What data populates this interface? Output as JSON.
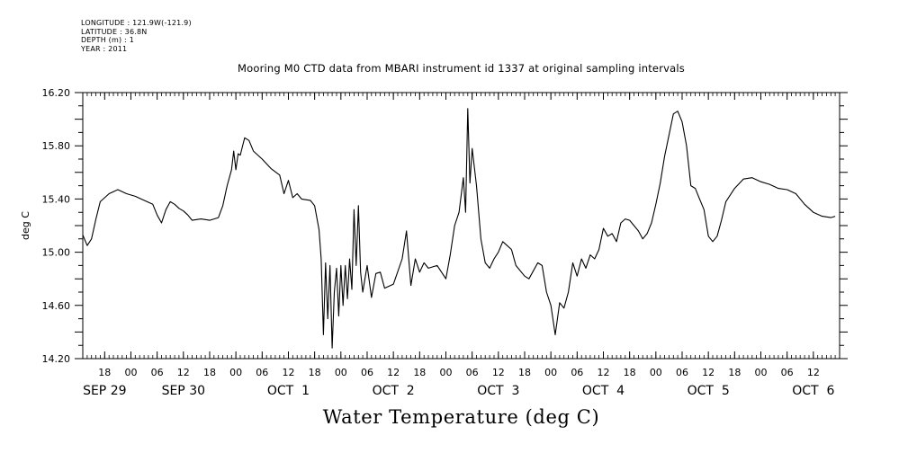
{
  "header": {
    "longitude": "LONGITUDE : 121.9W(-121.9)",
    "latitude": "LATITUDE : 36.8N",
    "depth": "DEPTH (m) : 1",
    "year": "YEAR : 2011"
  },
  "chart_data": {
    "type": "line",
    "title": "Mooring M0 CTD data from MBARI instrument id 1337 at original sampling intervals",
    "xlabel": "Water Temperature (deg C)",
    "ylabel": "deg C",
    "ylim": [
      14.2,
      16.2
    ],
    "xlim": [
      "2011-09-29T13:00",
      "2011-10-06T18:00"
    ],
    "y_ticks": [
      "14.20",
      "14.60",
      "15.00",
      "15.40",
      "15.80",
      "16.20"
    ],
    "hour_ticks": [
      {
        "t": "2011-09-29T18:00",
        "label": "18"
      },
      {
        "t": "2011-09-30T00:00",
        "label": "00"
      },
      {
        "t": "2011-09-30T06:00",
        "label": "06"
      },
      {
        "t": "2011-09-30T12:00",
        "label": "12"
      },
      {
        "t": "2011-09-30T18:00",
        "label": "18"
      },
      {
        "t": "2011-10-01T00:00",
        "label": "00"
      },
      {
        "t": "2011-10-01T06:00",
        "label": "06"
      },
      {
        "t": "2011-10-01T12:00",
        "label": "12"
      },
      {
        "t": "2011-10-01T18:00",
        "label": "18"
      },
      {
        "t": "2011-10-02T00:00",
        "label": "00"
      },
      {
        "t": "2011-10-02T06:00",
        "label": "06"
      },
      {
        "t": "2011-10-02T12:00",
        "label": "12"
      },
      {
        "t": "2011-10-02T18:00",
        "label": "18"
      },
      {
        "t": "2011-10-03T00:00",
        "label": "00"
      },
      {
        "t": "2011-10-03T06:00",
        "label": "06"
      },
      {
        "t": "2011-10-03T12:00",
        "label": "12"
      },
      {
        "t": "2011-10-03T18:00",
        "label": "18"
      },
      {
        "t": "2011-10-04T00:00",
        "label": "00"
      },
      {
        "t": "2011-10-04T06:00",
        "label": "06"
      },
      {
        "t": "2011-10-04T12:00",
        "label": "12"
      },
      {
        "t": "2011-10-04T18:00",
        "label": "18"
      },
      {
        "t": "2011-10-05T00:00",
        "label": "00"
      },
      {
        "t": "2011-10-05T06:00",
        "label": "06"
      },
      {
        "t": "2011-10-05T12:00",
        "label": "12"
      },
      {
        "t": "2011-10-05T18:00",
        "label": "18"
      },
      {
        "t": "2011-10-06T00:00",
        "label": "00"
      },
      {
        "t": "2011-10-06T06:00",
        "label": "06"
      },
      {
        "t": "2011-10-06T12:00",
        "label": "12"
      }
    ],
    "day_labels": [
      {
        "t": "2011-09-29T18:00",
        "label": "SEP 29"
      },
      {
        "t": "2011-09-30T12:00",
        "label": "SEP 30"
      },
      {
        "t": "2011-10-01T12:00",
        "label": "OCT  1"
      },
      {
        "t": "2011-10-02T12:00",
        "label": "OCT  2"
      },
      {
        "t": "2011-10-03T12:00",
        "label": "OCT  3"
      },
      {
        "t": "2011-10-04T12:00",
        "label": "OCT  4"
      },
      {
        "t": "2011-10-05T12:00",
        "label": "OCT  5"
      },
      {
        "t": "2011-10-06T12:00",
        "label": "OCT  6"
      }
    ],
    "series": [
      {
        "points": [
          [
            "2011-09-29T13:00",
            15.13
          ],
          [
            "2011-09-29T14:00",
            15.05
          ],
          [
            "2011-09-29T15:00",
            15.1
          ],
          [
            "2011-09-29T16:00",
            15.25
          ],
          [
            "2011-09-29T17:00",
            15.38
          ],
          [
            "2011-09-29T19:00",
            15.44
          ],
          [
            "2011-09-29T21:00",
            15.47
          ],
          [
            "2011-09-29T23:00",
            15.44
          ],
          [
            "2011-09-30T01:00",
            15.42
          ],
          [
            "2011-09-30T03:00",
            15.39
          ],
          [
            "2011-09-30T05:00",
            15.36
          ],
          [
            "2011-09-30T06:00",
            15.28
          ],
          [
            "2011-09-30T07:00",
            15.22
          ],
          [
            "2011-09-30T08:00",
            15.32
          ],
          [
            "2011-09-30T09:00",
            15.38
          ],
          [
            "2011-09-30T10:00",
            15.36
          ],
          [
            "2011-09-30T11:00",
            15.33
          ],
          [
            "2011-09-30T12:00",
            15.31
          ],
          [
            "2011-09-30T13:00",
            15.28
          ],
          [
            "2011-09-30T14:00",
            15.24
          ],
          [
            "2011-09-30T16:00",
            15.25
          ],
          [
            "2011-09-30T18:00",
            15.24
          ],
          [
            "2011-09-30T20:00",
            15.26
          ],
          [
            "2011-09-30T21:00",
            15.35
          ],
          [
            "2011-09-30T22:00",
            15.5
          ],
          [
            "2011-09-30T23:00",
            15.62
          ],
          [
            "2011-09-30T23:30",
            15.76
          ],
          [
            "2011-10-01T00:00",
            15.62
          ],
          [
            "2011-10-01T00:30",
            15.74
          ],
          [
            "2011-10-01T01:00",
            15.73
          ],
          [
            "2011-10-01T02:00",
            15.86
          ],
          [
            "2011-10-01T03:00",
            15.84
          ],
          [
            "2011-10-01T04:00",
            15.76
          ],
          [
            "2011-10-01T06:00",
            15.7
          ],
          [
            "2011-10-01T08:00",
            15.63
          ],
          [
            "2011-10-01T10:00",
            15.58
          ],
          [
            "2011-10-01T11:00",
            15.44
          ],
          [
            "2011-10-01T12:00",
            15.54
          ],
          [
            "2011-10-01T13:00",
            15.41
          ],
          [
            "2011-10-01T14:00",
            15.44
          ],
          [
            "2011-10-01T15:00",
            15.4
          ],
          [
            "2011-10-01T17:00",
            15.39
          ],
          [
            "2011-10-01T18:00",
            15.35
          ],
          [
            "2011-10-01T19:00",
            15.17
          ],
          [
            "2011-10-01T19:30",
            14.95
          ],
          [
            "2011-10-01T20:00",
            14.38
          ],
          [
            "2011-10-01T20:30",
            14.92
          ],
          [
            "2011-10-01T21:00",
            14.5
          ],
          [
            "2011-10-01T21:30",
            14.9
          ],
          [
            "2011-10-01T22:00",
            14.28
          ],
          [
            "2011-10-01T22:30",
            14.7
          ],
          [
            "2011-10-01T23:00",
            14.88
          ],
          [
            "2011-10-01T23:30",
            14.52
          ],
          [
            "2011-10-02T00:00",
            14.9
          ],
          [
            "2011-10-02T00:30",
            14.6
          ],
          [
            "2011-10-02T01:00",
            14.9
          ],
          [
            "2011-10-02T01:30",
            14.65
          ],
          [
            "2011-10-02T02:00",
            14.95
          ],
          [
            "2011-10-02T02:30",
            14.72
          ],
          [
            "2011-10-02T03:00",
            15.32
          ],
          [
            "2011-10-02T03:30",
            14.9
          ],
          [
            "2011-10-02T04:00",
            15.35
          ],
          [
            "2011-10-02T04:30",
            14.85
          ],
          [
            "2011-10-02T05:00",
            14.7
          ],
          [
            "2011-10-02T06:00",
            14.9
          ],
          [
            "2011-10-02T07:00",
            14.66
          ],
          [
            "2011-10-02T08:00",
            14.84
          ],
          [
            "2011-10-02T09:00",
            14.85
          ],
          [
            "2011-10-02T10:00",
            14.73
          ],
          [
            "2011-10-02T12:00",
            14.76
          ],
          [
            "2011-10-02T14:00",
            14.95
          ],
          [
            "2011-10-02T15:00",
            15.16
          ],
          [
            "2011-10-02T16:00",
            14.75
          ],
          [
            "2011-10-02T17:00",
            14.95
          ],
          [
            "2011-10-02T18:00",
            14.85
          ],
          [
            "2011-10-02T19:00",
            14.92
          ],
          [
            "2011-10-02T20:00",
            14.88
          ],
          [
            "2011-10-02T22:00",
            14.9
          ],
          [
            "2011-10-03T00:00",
            14.8
          ],
          [
            "2011-10-03T01:00",
            14.98
          ],
          [
            "2011-10-03T02:00",
            15.2
          ],
          [
            "2011-10-03T03:00",
            15.3
          ],
          [
            "2011-10-03T04:00",
            15.56
          ],
          [
            "2011-10-03T04:30",
            15.3
          ],
          [
            "2011-10-03T05:00",
            16.08
          ],
          [
            "2011-10-03T05:30",
            15.52
          ],
          [
            "2011-10-03T06:00",
            15.78
          ],
          [
            "2011-10-03T07:00",
            15.5
          ],
          [
            "2011-10-03T08:00",
            15.1
          ],
          [
            "2011-10-03T09:00",
            14.92
          ],
          [
            "2011-10-03T10:00",
            14.88
          ],
          [
            "2011-10-03T11:00",
            14.95
          ],
          [
            "2011-10-03T12:00",
            15.0
          ],
          [
            "2011-10-03T13:00",
            15.08
          ],
          [
            "2011-10-03T14:00",
            15.05
          ],
          [
            "2011-10-03T15:00",
            15.02
          ],
          [
            "2011-10-03T16:00",
            14.9
          ],
          [
            "2011-10-03T18:00",
            14.82
          ],
          [
            "2011-10-03T19:00",
            14.8
          ],
          [
            "2011-10-03T21:00",
            14.92
          ],
          [
            "2011-10-03T22:00",
            14.9
          ],
          [
            "2011-10-03T23:00",
            14.7
          ],
          [
            "2011-10-04T00:00",
            14.6
          ],
          [
            "2011-10-04T01:00",
            14.38
          ],
          [
            "2011-10-04T02:00",
            14.62
          ],
          [
            "2011-10-04T03:00",
            14.58
          ],
          [
            "2011-10-04T04:00",
            14.7
          ],
          [
            "2011-10-04T05:00",
            14.92
          ],
          [
            "2011-10-04T06:00",
            14.82
          ],
          [
            "2011-10-04T07:00",
            14.95
          ],
          [
            "2011-10-04T08:00",
            14.88
          ],
          [
            "2011-10-04T09:00",
            14.98
          ],
          [
            "2011-10-04T10:00",
            14.95
          ],
          [
            "2011-10-04T11:00",
            15.02
          ],
          [
            "2011-10-04T12:00",
            15.18
          ],
          [
            "2011-10-04T13:00",
            15.12
          ],
          [
            "2011-10-04T14:00",
            15.14
          ],
          [
            "2011-10-04T15:00",
            15.08
          ],
          [
            "2011-10-04T16:00",
            15.22
          ],
          [
            "2011-10-04T17:00",
            15.25
          ],
          [
            "2011-10-04T18:00",
            15.24
          ],
          [
            "2011-10-04T19:00",
            15.2
          ],
          [
            "2011-10-04T20:00",
            15.16
          ],
          [
            "2011-10-04T21:00",
            15.1
          ],
          [
            "2011-10-04T22:00",
            15.14
          ],
          [
            "2011-10-04T23:00",
            15.22
          ],
          [
            "2011-10-05T00:00",
            15.36
          ],
          [
            "2011-10-05T01:00",
            15.52
          ],
          [
            "2011-10-05T02:00",
            15.72
          ],
          [
            "2011-10-05T03:00",
            15.88
          ],
          [
            "2011-10-05T04:00",
            16.04
          ],
          [
            "2011-10-05T05:00",
            16.06
          ],
          [
            "2011-10-05T06:00",
            15.98
          ],
          [
            "2011-10-05T07:00",
            15.8
          ],
          [
            "2011-10-05T08:00",
            15.5
          ],
          [
            "2011-10-05T09:00",
            15.48
          ],
          [
            "2011-10-05T10:00",
            15.4
          ],
          [
            "2011-10-05T11:00",
            15.32
          ],
          [
            "2011-10-05T12:00",
            15.12
          ],
          [
            "2011-10-05T13:00",
            15.08
          ],
          [
            "2011-10-05T14:00",
            15.12
          ],
          [
            "2011-10-05T15:00",
            15.24
          ],
          [
            "2011-10-05T16:00",
            15.38
          ],
          [
            "2011-10-05T18:00",
            15.48
          ],
          [
            "2011-10-05T20:00",
            15.55
          ],
          [
            "2011-10-05T22:00",
            15.56
          ],
          [
            "2011-10-06T00:00",
            15.53
          ],
          [
            "2011-10-06T02:00",
            15.51
          ],
          [
            "2011-10-06T04:00",
            15.48
          ],
          [
            "2011-10-06T06:00",
            15.47
          ],
          [
            "2011-10-06T08:00",
            15.44
          ],
          [
            "2011-10-06T10:00",
            15.36
          ],
          [
            "2011-10-06T12:00",
            15.3
          ],
          [
            "2011-10-06T14:00",
            15.27
          ],
          [
            "2011-10-06T16:00",
            15.26
          ],
          [
            "2011-10-06T17:00",
            15.27
          ]
        ]
      }
    ]
  }
}
